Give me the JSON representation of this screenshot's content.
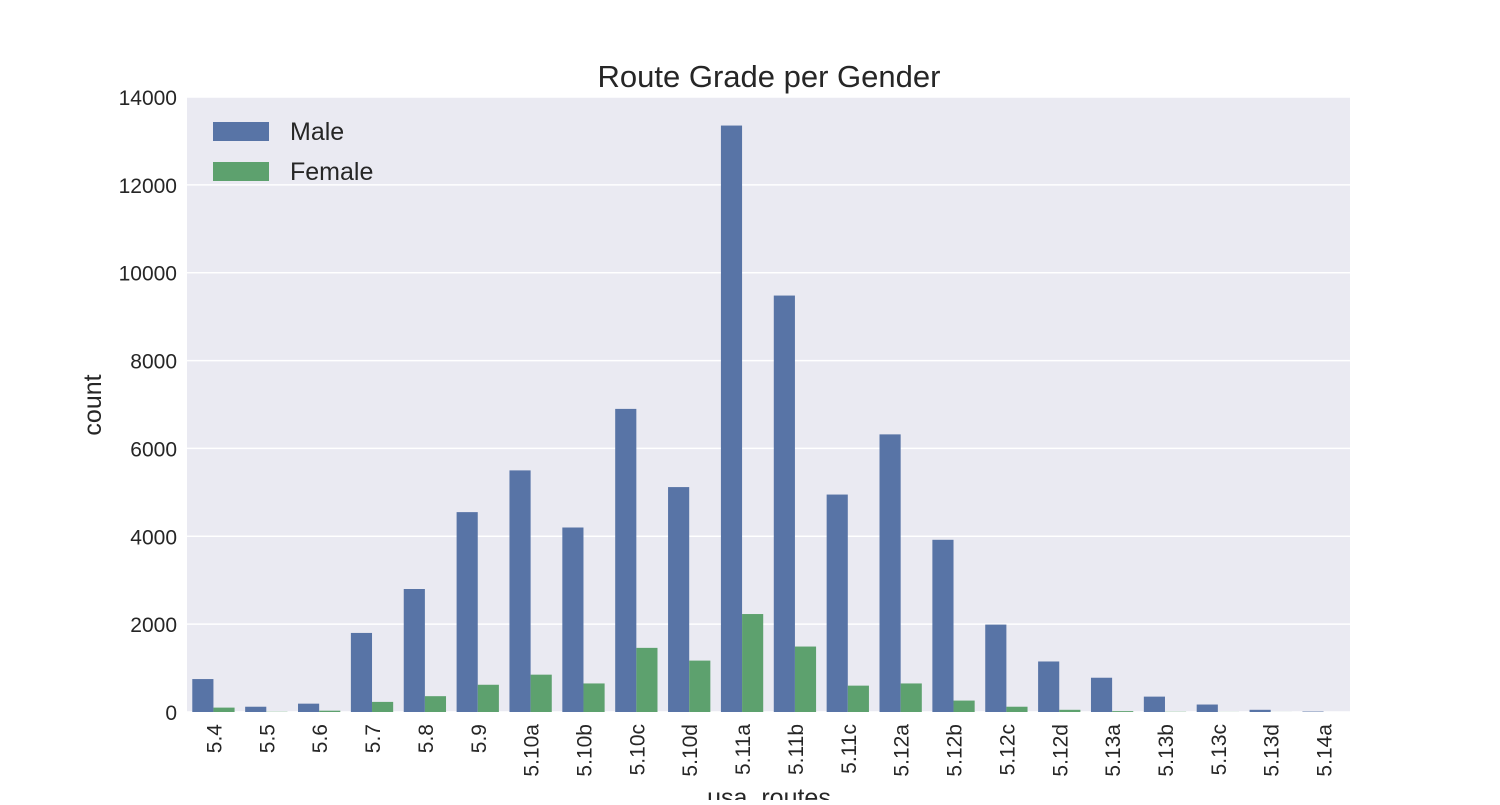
{
  "chart_data": {
    "type": "bar",
    "title": "Route Grade per Gender",
    "xlabel": "usa_routes",
    "ylabel": "count",
    "ylim": [
      0,
      14000
    ],
    "yticks": [
      0,
      2000,
      4000,
      6000,
      8000,
      10000,
      12000,
      14000
    ],
    "categories": [
      "5.4",
      "5.5",
      "5.6",
      "5.7",
      "5.8",
      "5.9",
      "5.10a",
      "5.10b",
      "5.10c",
      "5.10d",
      "5.11a",
      "5.11b",
      "5.11c",
      "5.12a",
      "5.12b",
      "5.12c",
      "5.12d",
      "5.13a",
      "5.13b",
      "5.13c",
      "5.13d",
      "5.14a"
    ],
    "series": [
      {
        "name": "Male",
        "color": "#5874a6",
        "values": [
          750,
          120,
          190,
          1800,
          2800,
          4550,
          5500,
          4200,
          6900,
          5120,
          13350,
          9480,
          4950,
          6320,
          3920,
          1990,
          1150,
          780,
          350,
          170,
          50,
          10
        ]
      },
      {
        "name": "Female",
        "color": "#5da16e",
        "values": [
          100,
          5,
          30,
          230,
          360,
          620,
          850,
          650,
          1460,
          1170,
          2230,
          1490,
          600,
          650,
          260,
          120,
          50,
          20,
          5,
          2,
          1,
          0
        ]
      }
    ],
    "grid": true,
    "legend_position": "top-left",
    "background": "#eaeaf2"
  }
}
